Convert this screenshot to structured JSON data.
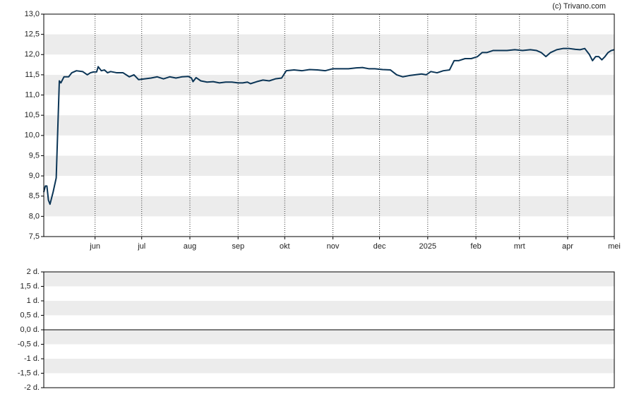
{
  "source": "(c) Trivano.com",
  "chart_data": [
    {
      "type": "line",
      "x": [
        -33,
        -32,
        -31,
        -30,
        -29,
        -27,
        -25,
        -23,
        -22,
        -20,
        -17,
        -15,
        -12,
        -8,
        -5,
        -3,
        -1,
        1,
        2,
        4,
        6,
        8,
        10,
        14,
        18,
        22,
        25,
        28,
        32,
        36,
        40,
        44,
        48,
        52,
        56,
        60,
        62,
        63,
        65,
        68,
        72,
        76,
        80,
        84,
        88,
        92,
        95,
        98,
        100,
        104,
        108,
        112,
        116,
        120,
        123,
        128,
        133,
        138,
        143,
        148,
        153,
        158,
        163,
        168,
        172,
        176,
        180,
        185,
        190,
        194,
        198,
        202,
        206,
        210,
        213,
        216,
        220,
        224,
        228,
        231,
        234,
        238,
        242,
        246,
        249,
        252,
        256,
        260,
        265,
        270,
        275,
        280,
        284,
        287,
        290,
        293,
        297,
        301,
        305,
        309,
        312,
        315,
        318,
        320,
        322,
        324,
        326,
        328,
        330,
        332,
        334
      ],
      "series": [
        {
          "color": "#0b3556",
          "values": [
            8.6,
            8.75,
            8.75,
            8.4,
            8.3,
            8.6,
            8.95,
            11.35,
            11.3,
            11.45,
            11.45,
            11.55,
            11.6,
            11.58,
            11.5,
            11.55,
            11.57,
            11.57,
            11.7,
            11.6,
            11.62,
            11.55,
            11.58,
            11.55,
            11.55,
            11.45,
            11.5,
            11.38,
            11.4,
            11.42,
            11.45,
            11.4,
            11.45,
            11.42,
            11.45,
            11.46,
            11.42,
            11.33,
            11.43,
            11.35,
            11.32,
            11.33,
            11.3,
            11.32,
            11.32,
            11.3,
            11.3,
            11.32,
            11.28,
            11.33,
            11.37,
            11.35,
            11.4,
            11.42,
            11.6,
            11.62,
            11.6,
            11.63,
            11.62,
            11.6,
            11.65,
            11.65,
            11.65,
            11.67,
            11.68,
            11.65,
            11.65,
            11.63,
            11.62,
            11.5,
            11.45,
            11.48,
            11.5,
            11.52,
            11.5,
            11.58,
            11.55,
            11.6,
            11.62,
            11.85,
            11.85,
            11.9,
            11.9,
            11.95,
            12.05,
            12.05,
            12.1,
            12.1,
            12.1,
            12.12,
            12.1,
            12.12,
            12.1,
            12.05,
            11.95,
            12.05,
            12.12,
            12.15,
            12.15,
            12.13,
            12.12,
            12.15,
            12.0,
            11.85,
            11.95,
            11.95,
            11.87,
            11.95,
            12.05,
            12.1,
            12.12
          ]
        }
      ],
      "xlim": [
        -33,
        334
      ],
      "xticks": [
        {
          "value": 0,
          "label": "jun"
        },
        {
          "value": 30,
          "label": "jul"
        },
        {
          "value": 61,
          "label": "aug"
        },
        {
          "value": 92,
          "label": "sep"
        },
        {
          "value": 122,
          "label": "okt"
        },
        {
          "value": 153,
          "label": "nov"
        },
        {
          "value": 183,
          "label": "dec"
        },
        {
          "value": 214,
          "label": "2025"
        },
        {
          "value": 245,
          "label": "feb"
        },
        {
          "value": 273,
          "label": "mrt"
        },
        {
          "value": 304,
          "label": "apr"
        },
        {
          "value": 334,
          "label": "mei"
        }
      ],
      "ylim": [
        7.5,
        13
      ],
      "yticks": [
        {
          "value": 7.5,
          "label": "7,5"
        },
        {
          "value": 8,
          "label": "8,0"
        },
        {
          "value": 8.5,
          "label": "8,5"
        },
        {
          "value": 9,
          "label": "9,0"
        },
        {
          "value": 9.5,
          "label": "9,5"
        },
        {
          "value": 10,
          "label": "10,0"
        },
        {
          "value": 10.5,
          "label": "10,5"
        },
        {
          "value": 11,
          "label": "11,0"
        },
        {
          "value": 11.5,
          "label": "11,5"
        },
        {
          "value": 12,
          "label": "12,0"
        },
        {
          "value": 12.5,
          "label": "12,5"
        },
        {
          "value": 13,
          "label": "13,0"
        }
      ],
      "grid": true
    },
    {
      "type": "line",
      "ylim": [
        -2,
        2
      ],
      "yticks": [
        {
          "value": -2,
          "label": "-2 d."
        },
        {
          "value": -1.5,
          "label": "-1,5 d."
        },
        {
          "value": -1,
          "label": "-1 d."
        },
        {
          "value": -0.5,
          "label": "-0,5 d."
        },
        {
          "value": 0,
          "label": "0,0 d."
        },
        {
          "value": 0.5,
          "label": "0,5 d."
        },
        {
          "value": 1,
          "label": "1 d."
        },
        {
          "value": 1.5,
          "label": "1,5 d."
        },
        {
          "value": 2,
          "label": "2 d."
        }
      ],
      "zero_line": true
    }
  ]
}
